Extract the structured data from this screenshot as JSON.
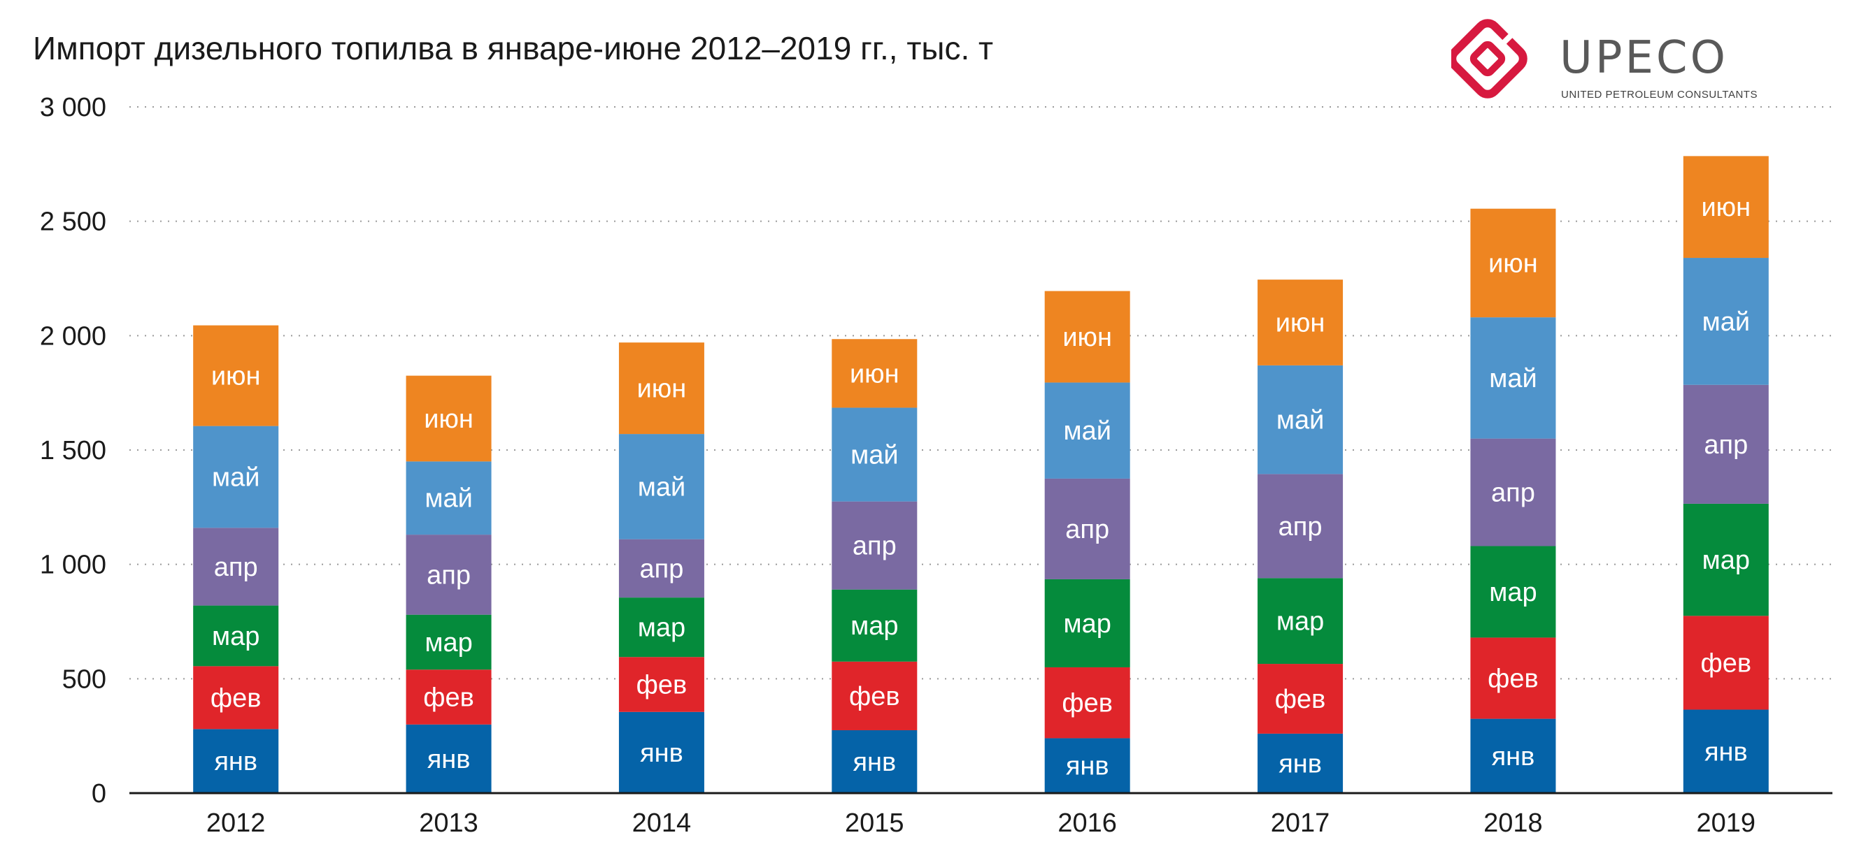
{
  "chart_data": {
    "type": "bar",
    "stacked": true,
    "title": "Импорт дизельного топилва в январе-июне 2012–2019 гг., тыс. т",
    "xlabel": "",
    "ylabel": "",
    "ylim": [
      0,
      3000
    ],
    "yticks": [
      0,
      500,
      1000,
      1500,
      2000,
      2500,
      3000
    ],
    "ytick_labels": [
      "0",
      "500",
      "1 000",
      "1 500",
      "2 000",
      "2 500",
      "3 000"
    ],
    "grid": true,
    "categories": [
      "2012",
      "2013",
      "2014",
      "2015",
      "2016",
      "2017",
      "2018",
      "2019"
    ],
    "series": [
      {
        "name": "янв",
        "color": "#0563a8",
        "values": [
          280,
          300,
          355,
          275,
          240,
          260,
          325,
          365
        ]
      },
      {
        "name": "фев",
        "color": "#e0252a",
        "values": [
          275,
          240,
          240,
          300,
          310,
          305,
          355,
          410
        ]
      },
      {
        "name": "мар",
        "color": "#058b3c",
        "values": [
          265,
          240,
          260,
          315,
          385,
          375,
          400,
          490
        ]
      },
      {
        "name": "апр",
        "color": "#7a6aa2",
        "values": [
          340,
          350,
          255,
          385,
          440,
          455,
          470,
          520
        ]
      },
      {
        "name": "май",
        "color": "#4f94cb",
        "values": [
          445,
          320,
          460,
          410,
          420,
          475,
          530,
          555
        ]
      },
      {
        "name": "июн",
        "color": "#ee8521",
        "values": [
          440,
          375,
          400,
          300,
          400,
          375,
          475,
          445
        ]
      }
    ]
  },
  "logo": {
    "wordmark": "UPECO",
    "tagline": "UNITED PETROLEUM CONSULTANTS"
  }
}
